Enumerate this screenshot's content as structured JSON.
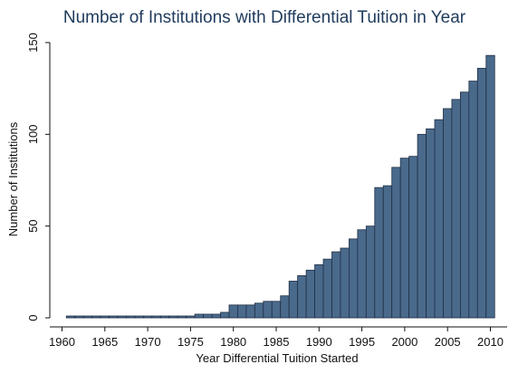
{
  "chart_data": {
    "type": "bar",
    "title": "Number of Institutions with Differential Tuition in Year",
    "xlabel": "Year Differential Tuition Started",
    "ylabel": "Number of Institutions",
    "xlim": [
      1959,
      2011
    ],
    "ylim": [
      0,
      150
    ],
    "x_ticks": [
      1960,
      1965,
      1970,
      1975,
      1980,
      1985,
      1990,
      1995,
      2000,
      2005,
      2010
    ],
    "y_ticks": [
      0,
      50,
      100,
      150
    ],
    "bar_color": "#4a6a8c",
    "grid": false,
    "x": [
      1961,
      1962,
      1963,
      1964,
      1965,
      1966,
      1967,
      1968,
      1969,
      1970,
      1971,
      1972,
      1973,
      1974,
      1975,
      1976,
      1977,
      1978,
      1979,
      1980,
      1981,
      1982,
      1983,
      1984,
      1985,
      1986,
      1987,
      1988,
      1989,
      1990,
      1991,
      1992,
      1993,
      1994,
      1995,
      1996,
      1997,
      1998,
      1999,
      2000,
      2001,
      2002,
      2003,
      2004,
      2005,
      2006,
      2007,
      2008,
      2009,
      2010
    ],
    "values": [
      1,
      1,
      1,
      1,
      1,
      1,
      1,
      1,
      1,
      1,
      1,
      1,
      1,
      1,
      1,
      2,
      2,
      2,
      3,
      7,
      7,
      7,
      8,
      9,
      9,
      12,
      20,
      23,
      26,
      29,
      32,
      36,
      38,
      43,
      48,
      50,
      71,
      72,
      82,
      87,
      88,
      100,
      103,
      108,
      114,
      119,
      123,
      129,
      136,
      143
    ]
  }
}
